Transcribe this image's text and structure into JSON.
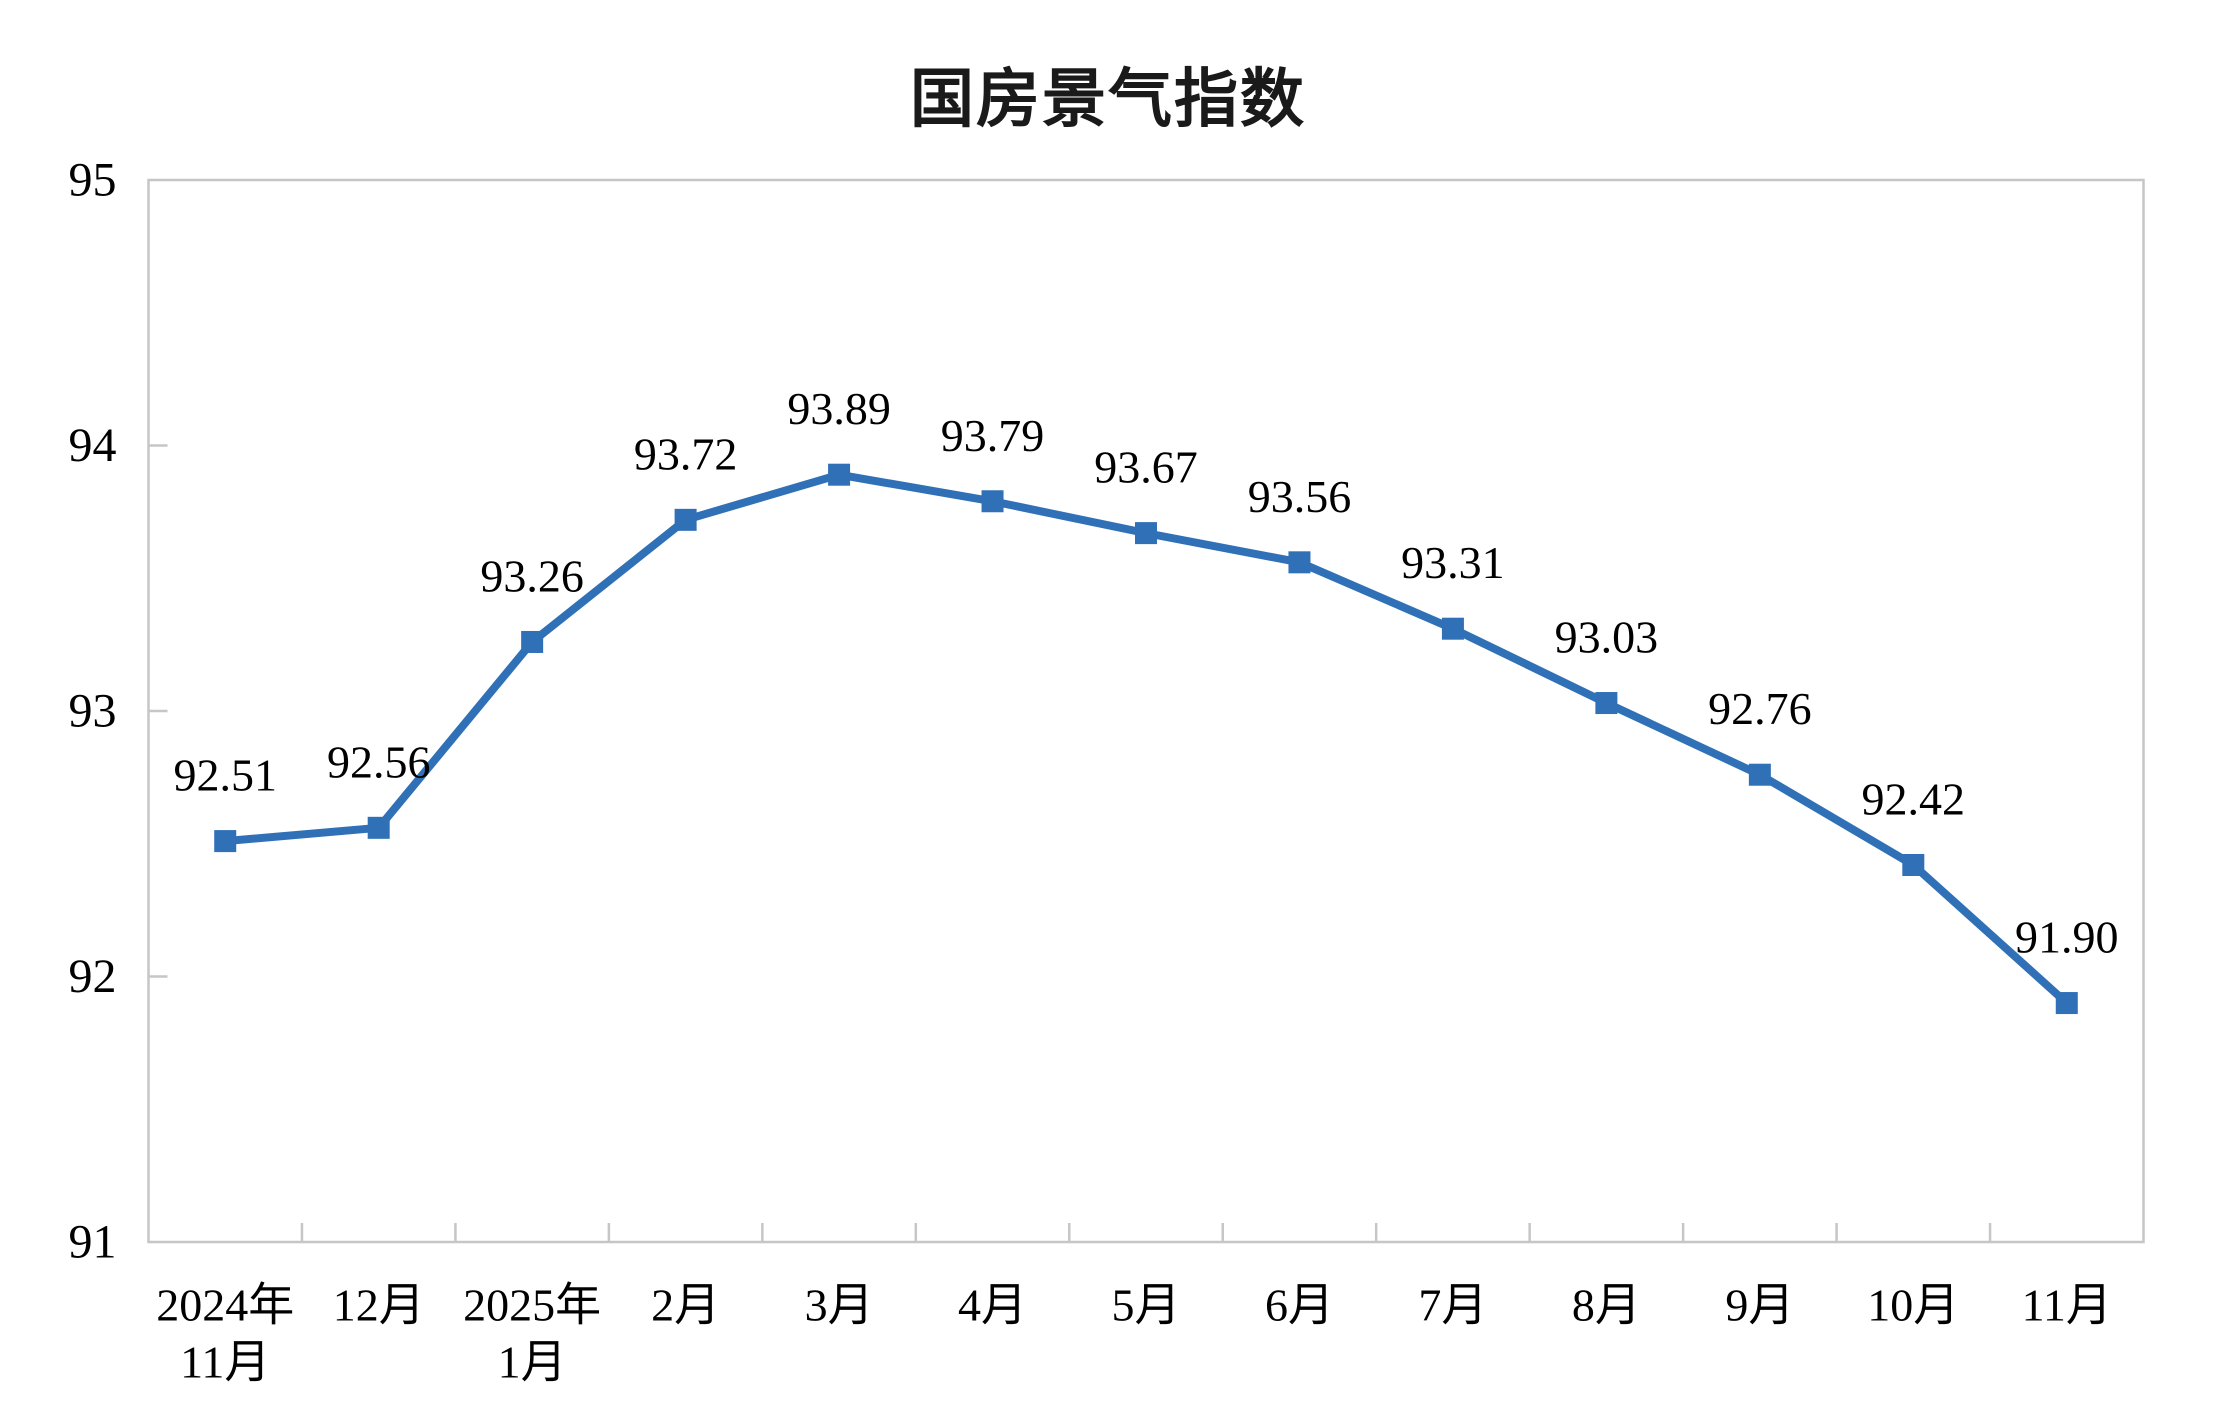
{
  "chart_data": {
    "type": "line",
    "title": "国房景气指数",
    "categories": [
      [
        "2024年",
        "11月"
      ],
      [
        "12月"
      ],
      [
        "2025年",
        "1月"
      ],
      [
        "2月"
      ],
      [
        "3月"
      ],
      [
        "4月"
      ],
      [
        "5月"
      ],
      [
        "6月"
      ],
      [
        "7月"
      ],
      [
        "8月"
      ],
      [
        "9月"
      ],
      [
        "10月"
      ],
      [
        "11月"
      ]
    ],
    "series": [
      {
        "name": "国房景气指数",
        "values": [
          92.51,
          92.56,
          93.26,
          93.72,
          93.89,
          93.79,
          93.67,
          93.56,
          93.31,
          93.03,
          92.76,
          92.42,
          91.9
        ],
        "data_labels": [
          "92.51",
          "92.56",
          "93.26",
          "93.72",
          "93.89",
          "93.79",
          "93.67",
          "93.56",
          "93.31",
          "93.03",
          "92.76",
          "92.42",
          "91.90"
        ]
      }
    ],
    "ylim": [
      91,
      95
    ],
    "yticks": [
      "91",
      "92",
      "93",
      "94",
      "95"
    ],
    "grid": false,
    "legend_position": "none",
    "data_label_position": "above",
    "marker": "square",
    "colors": {
      "line": "#2F70B7",
      "marker": "#2F70B7",
      "axis_frame": "#C6C6C6",
      "text": "#000000",
      "title_text": "#1a1a1a",
      "background": "#FFFFFF"
    }
  }
}
